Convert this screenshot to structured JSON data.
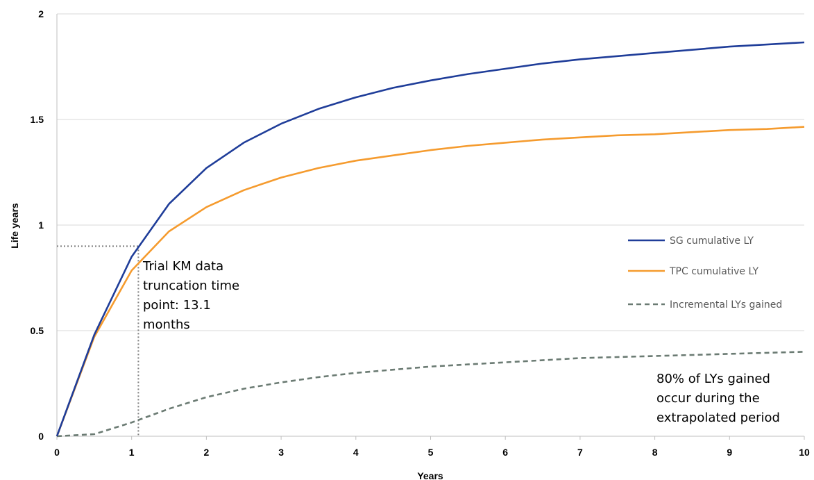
{
  "chart_data": {
    "type": "line",
    "xlabel": "Years",
    "ylabel": "Life years",
    "xlim": [
      0,
      10
    ],
    "ylim": [
      0,
      2
    ],
    "x_ticks": [
      "0",
      "1",
      "2",
      "3",
      "4",
      "5",
      "6",
      "7",
      "8",
      "9",
      "10"
    ],
    "y_ticks": [
      "0",
      "0.5",
      "1",
      "1.5",
      "2"
    ],
    "grid": "horizontal",
    "legend_position": "right",
    "x": [
      0,
      0.5,
      1,
      1.5,
      2,
      2.5,
      3,
      3.5,
      4,
      4.5,
      5,
      5.5,
      6,
      6.5,
      7,
      7.5,
      8,
      8.5,
      9,
      9.5,
      10
    ],
    "series": [
      {
        "name": "SG cumulative LY",
        "color": "#1f3d99",
        "style": "solid",
        "values": [
          0,
          0.48,
          0.85,
          1.1,
          1.27,
          1.39,
          1.48,
          1.55,
          1.605,
          1.65,
          1.685,
          1.715,
          1.74,
          1.765,
          1.785,
          1.8,
          1.815,
          1.83,
          1.845,
          1.855,
          1.865
        ]
      },
      {
        "name": "TPC cumulative LY",
        "color": "#f59b2e",
        "style": "solid",
        "values": [
          0,
          0.47,
          0.785,
          0.97,
          1.085,
          1.165,
          1.225,
          1.27,
          1.305,
          1.33,
          1.355,
          1.375,
          1.39,
          1.405,
          1.415,
          1.425,
          1.43,
          1.44,
          1.45,
          1.455,
          1.465
        ]
      },
      {
        "name": "Incremental LYs gained",
        "color": "#6b7b73",
        "style": "dashed",
        "values": [
          0,
          0.01,
          0.065,
          0.13,
          0.185,
          0.225,
          0.255,
          0.28,
          0.3,
          0.315,
          0.33,
          0.34,
          0.35,
          0.36,
          0.37,
          0.375,
          0.38,
          0.385,
          0.39,
          0.395,
          0.4
        ]
      }
    ],
    "reference_lines": {
      "vertical_x": 1.09,
      "horizontal_y": 0.9,
      "color": "#7f7f7f",
      "style": "dotted"
    },
    "annotations": [
      {
        "id": "truncation",
        "lines": [
          "Trial KM data",
          "truncation time",
          "point: 13.1",
          "months"
        ]
      },
      {
        "id": "extrapolated",
        "lines": [
          "80% of LYs gained",
          "occur during the",
          "extrapolated period"
        ]
      }
    ]
  }
}
